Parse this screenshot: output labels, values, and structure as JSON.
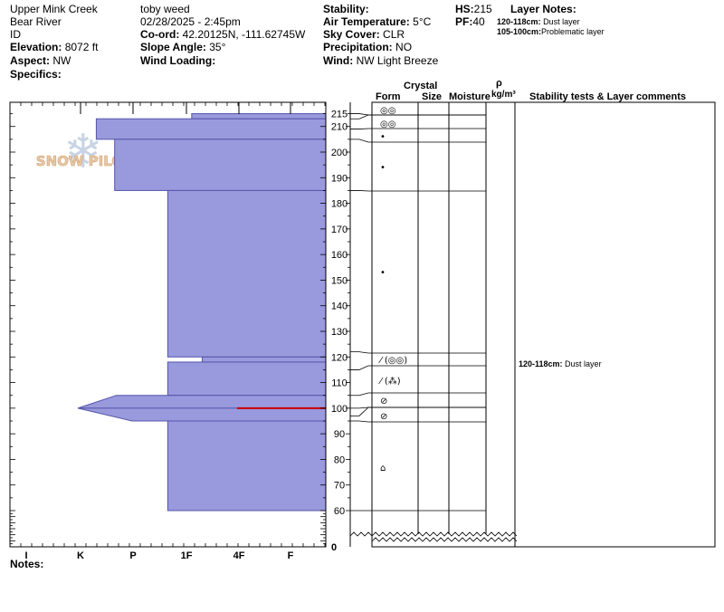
{
  "header": {
    "location": "Upper Mink Creek",
    "range": "Bear River",
    "id_label": "ID",
    "elevation_label": "Elevation:",
    "elevation": "8072 ft",
    "aspect_label": "Aspect:",
    "aspect": "NW",
    "specifics_label": "Specifics:",
    "observer": "toby weed",
    "datetime": "02/28/2025 - 2:45pm",
    "coord_label": "Co-ord:",
    "coord": "42.20125N, -111.62745W",
    "slope_label": "Slope Angle:",
    "slope": "35°",
    "wind_loading_label": "Wind Loading:",
    "stability_label": "Stability:",
    "air_temp_label": "Air Temperature:",
    "air_temp": "5°C",
    "sky_label": "Sky Cover:",
    "sky": "CLR",
    "precip_label": "Precipitation:",
    "precip": "NO",
    "wind_label": "Wind:",
    "wind": "NW Light Breeze",
    "hs_label": "HS:",
    "hs": "215",
    "pf_label": "PF:",
    "pf": "40",
    "layer_notes_label": "Layer Notes:",
    "layer_notes": [
      {
        "range": "120-118cm:",
        "text": "Dust layer"
      },
      {
        "range": "105-100cm:",
        "text": "Problematic layer"
      }
    ]
  },
  "columns": {
    "crystal": "Crystal",
    "form": "Form",
    "size": "Size",
    "moisture": "Moisture",
    "rho": "ρ",
    "density_unit": "kg/m³",
    "comments": "Stability tests & Layer comments"
  },
  "watermark": "SNOW PILOT",
  "notes_label": "Notes:",
  "colors": {
    "fill": "#9999dd",
    "stroke": "#5555aa",
    "red_line": "#cc0000"
  },
  "chart_data": {
    "type": "bar",
    "hardness_axis": [
      "I",
      "K",
      "P",
      "1F",
      "4F",
      "F"
    ],
    "depth_range": [
      0,
      215
    ],
    "depth_ticks": [
      60,
      70,
      80,
      90,
      100,
      110,
      120,
      130,
      140,
      150,
      160,
      170,
      180,
      190,
      200,
      210,
      215
    ],
    "zero_label": "0",
    "layers": [
      {
        "top": 215,
        "bottom": 213,
        "hardness": 3.1
      },
      {
        "top": 213,
        "bottom": 205,
        "hardness": 1.3
      },
      {
        "top": 205,
        "bottom": 185,
        "hardness": 1.65
      },
      {
        "top": 185,
        "bottom": 120,
        "hardness": 2.65
      },
      {
        "top": 120,
        "bottom": 118,
        "hardness": 3.3
      },
      {
        "top": 118,
        "bottom": 105,
        "hardness": 2.65
      },
      {
        "top": 105,
        "bottom": 100,
        "hardness": 1.68,
        "bottom_hardness": 0.95
      },
      {
        "top": 100,
        "bottom": 95,
        "hardness": 0.95,
        "bottom_hardness": 1.98
      },
      {
        "top": 95,
        "bottom": 60,
        "hardness": 2.65
      }
    ],
    "critical_layer": 100,
    "layer_boundaries": [
      215,
      213,
      209,
      205,
      185,
      122,
      115,
      105,
      100,
      97,
      95,
      60
    ],
    "forms": [
      {
        "depth": 214,
        "symbol": "◎◎"
      },
      {
        "depth": 210,
        "symbol": "◎◎"
      },
      {
        "depth": 207,
        "symbol": "•"
      },
      {
        "depth": 195,
        "symbol": "•"
      },
      {
        "depth": 154,
        "symbol": "•"
      },
      {
        "depth": 119,
        "symbol": "⁄ (◎◎)"
      },
      {
        "depth": 111,
        "symbol": "⁄ (⁂)"
      },
      {
        "depth": 102,
        "symbol": "⊘"
      },
      {
        "depth": 96,
        "symbol": "⊘"
      },
      {
        "depth": 77,
        "symbol": "⌂"
      }
    ],
    "comments": [
      {
        "depth": 119,
        "range": "120-118cm:",
        "text": "Dust layer"
      }
    ]
  }
}
